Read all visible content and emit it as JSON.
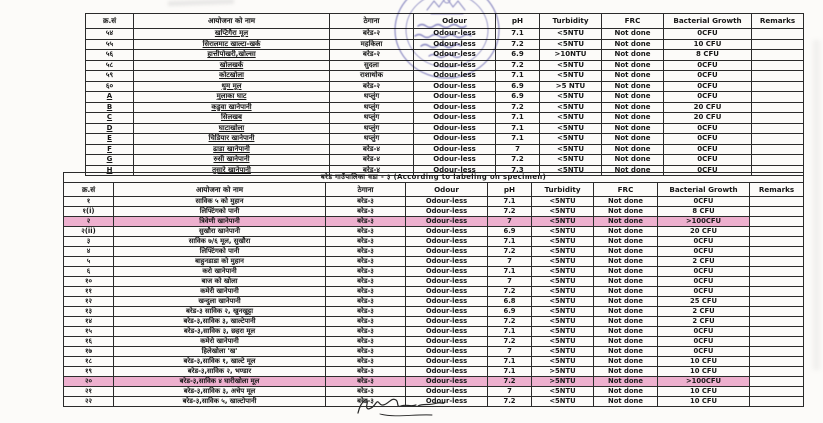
{
  "page": {
    "background": "#fcfbf9"
  },
  "colors": {
    "highlight": "#e9aecb",
    "stamp_ink": "#4a48a6",
    "table_border": "#2e2e2e"
  },
  "table1": {
    "headers": [
      "क्र.सं",
      "आयोजना को नाम",
      "ठेगाना",
      "Odour",
      "pH",
      "Turbidity",
      "FRC",
      "Bacterial Growth",
      "Remarks"
    ],
    "rows": [
      {
        "sn": "५४",
        "name": "खप्टिगैरा मूल",
        "addr": "बरेड-२",
        "odour": "Odour-less",
        "ph": "7.1",
        "turb": "<5NTU",
        "frc": "Not done",
        "bact": "0CFU",
        "rem": ""
      },
      {
        "sn": "५५",
        "name": "सिरालमाट खाल्टा-खर्क",
        "addr": "महकिला",
        "odour": "Odour-less",
        "ph": "7.2",
        "turb": "<5NTU",
        "frc": "Not done",
        "bact": "10 CFU",
        "rem": ""
      },
      {
        "sn": "५६",
        "name": "हात्तीपोखरी,खोल्सा",
        "addr": "बरेड-२",
        "odour": "Odour-less",
        "ph": "6.9",
        "turb": ">10NTU",
        "frc": "Not done",
        "bact": "8 CFU",
        "rem": ""
      },
      {
        "sn": "५८",
        "name": "खोलखर्क",
        "addr": "सुदला",
        "odour": "Odour-less",
        "ph": "7.2",
        "turb": "<5NTU",
        "frc": "Not done",
        "bact": "0CFU",
        "rem": ""
      },
      {
        "sn": "५९",
        "name": "कोटखोला",
        "addr": "राशाथोक",
        "odour": "Odour-less",
        "ph": "7.1",
        "turb": "<5NTU",
        "frc": "Not done",
        "bact": "0CFU",
        "rem": ""
      },
      {
        "sn": "६०",
        "name": "थुम मूल",
        "addr": "बरेड-२",
        "odour": "Odour-less",
        "ph": "6.9",
        "turb": ">5 NTU",
        "frc": "Not done",
        "bact": "0CFU",
        "rem": ""
      },
      {
        "sn": "A",
        "name": "मुलाका घाट",
        "addr": "थप्लुंग",
        "odour": "Odour-less",
        "ph": "6.9",
        "turb": "<5NTU",
        "frc": "Not done",
        "bact": "0CFU",
        "rem": ""
      },
      {
        "sn": "B",
        "name": "कडुवा खानेपानी",
        "addr": "थप्लुंग",
        "odour": "Odour-less",
        "ph": "7.2",
        "turb": "<5NTU",
        "frc": "Not done",
        "bact": "20 CFU",
        "rem": ""
      },
      {
        "sn": "C",
        "name": "सिलखब",
        "addr": "थप्लुंग",
        "odour": "Odour-less",
        "ph": "7.1",
        "turb": "<5NTU",
        "frc": "Not done",
        "bact": "20 CFU",
        "rem": ""
      },
      {
        "sn": "D",
        "name": "घाटाखोला",
        "addr": "थप्लुंग",
        "odour": "Odour-less",
        "ph": "7.1",
        "turb": "<5NTU",
        "frc": "Not done",
        "bact": "0CFU",
        "rem": ""
      },
      {
        "sn": "E",
        "name": "चिडियार खानेपानी",
        "addr": "थप्लुंग",
        "odour": "Odour-less",
        "ph": "7.1",
        "turb": "<5NTU",
        "frc": "Not done",
        "bact": "0CFU",
        "rem": ""
      },
      {
        "sn": "F",
        "name": "ढाडा खानेपानी",
        "addr": "बरेड-४",
        "odour": "Odour-less",
        "ph": "7",
        "turb": "<5NTU",
        "frc": "Not done",
        "bact": "0CFU",
        "rem": ""
      },
      {
        "sn": "G",
        "name": "रुसी खानेपानी",
        "addr": "बरेड-४",
        "odour": "Odour-less",
        "ph": "7.2",
        "turb": "<5NTU",
        "frc": "Not done",
        "bact": "0CFU",
        "rem": ""
      },
      {
        "sn": "H",
        "name": "तुसारे खानेपानी",
        "addr": "बरेड-४",
        "odour": "Odour-less",
        "ph": "7.3",
        "turb": "<5NTU",
        "frc": "Not done",
        "bact": "0CFU",
        "rem": ""
      }
    ]
  },
  "table2": {
    "title": "बरेड गाउँपालिका वडा - ३ (According to labeling on specimen)",
    "headers": [
      "क्र.सं",
      "आयोजना को नाम",
      "ठेगाना",
      "Odour",
      "pH",
      "Turbidity",
      "FRC",
      "Bacterial Growth",
      "Remarks"
    ],
    "rows": [
      {
        "sn": "१",
        "name": "साविक ५ को मुहान",
        "addr": "बरेड-३",
        "odour": "Odour-less",
        "ph": "7.1",
        "turb": "<5NTU",
        "frc": "Not done",
        "bact": "0CFU",
        "rem": ""
      },
      {
        "sn": "१(i)",
        "name": "लिफ्टिंगको पानी",
        "addr": "बरेड-३",
        "odour": "Odour-less",
        "ph": "7.2",
        "turb": "<5NTU",
        "frc": "Not done",
        "bact": "8 CFU",
        "rem": ""
      },
      {
        "sn": "२",
        "name": "त्रिवेणी खानेपानी",
        "addr": "बरेड-३",
        "odour": "Odour-less",
        "ph": "7",
        "turb": "<5NTU",
        "frc": "Not done",
        "bact": ">100CFU",
        "rem": "",
        "hl": true
      },
      {
        "sn": "२(ii)",
        "name": "सुखौरा खानेपानी",
        "addr": "बरेड-३",
        "odour": "Odour-less",
        "ph": "6.9",
        "turb": "<5NTU",
        "frc": "Not done",
        "bact": "20 CFU",
        "rem": ""
      },
      {
        "sn": "३",
        "name": "साविक ७/६ मूल, सुखौरा",
        "addr": "बरेड-३",
        "odour": "Odour-less",
        "ph": "7.1",
        "turb": "<5NTU",
        "frc": "Not done",
        "bact": "0CFU",
        "rem": ""
      },
      {
        "sn": "४",
        "name": "लिफ्टिंगको पानी",
        "addr": "बरेड-३",
        "odour": "Odour-less",
        "ph": "7.2",
        "turb": "<5NTU",
        "frc": "Not done",
        "bact": "0CFU",
        "rem": ""
      },
      {
        "sn": "५",
        "name": "बाहुनडाडा को मुहान",
        "addr": "बरेड-३",
        "odour": "Odour-less",
        "ph": "7",
        "turb": "<5NTU",
        "frc": "Not done",
        "bact": "2 CFU",
        "rem": ""
      },
      {
        "sn": "६",
        "name": "करो खानेपानी",
        "addr": "बरेड-३",
        "odour": "Odour-less",
        "ph": "7.1",
        "turb": "<5NTU",
        "frc": "Not done",
        "bact": "0CFU",
        "rem": ""
      },
      {
        "sn": "१०",
        "name": "बाज को खोला",
        "addr": "बरेड-३",
        "odour": "Odour-less",
        "ph": "7",
        "turb": "<5NTU",
        "frc": "Not done",
        "bact": "0CFU",
        "rem": ""
      },
      {
        "sn": "११",
        "name": "कमेरी खानेपानी",
        "addr": "बरेड-३",
        "odour": "Odour-less",
        "ph": "7.2",
        "turb": "<5NTU",
        "frc": "Not done",
        "bact": "0CFU",
        "rem": ""
      },
      {
        "sn": "१२",
        "name": "खन्दुला खानेपानी",
        "addr": "बरेड-३",
        "odour": "Odour-less",
        "ph": "6.8",
        "turb": "<5NTU",
        "frc": "Not done",
        "bact": "25 CFU",
        "rem": ""
      },
      {
        "sn": "१३",
        "name": "बरेड-३ साविक २, खुनखुट्टा",
        "addr": "बरेड-३",
        "odour": "Odour-less",
        "ph": "6.9",
        "turb": "<5NTU",
        "frc": "Not done",
        "bact": "2 CFU",
        "rem": ""
      },
      {
        "sn": "१४",
        "name": "बरेड-३,साविक ३, खाल्टेपानी",
        "addr": "बरेड-३",
        "odour": "Odour-less",
        "ph": "7.2",
        "turb": "<5NTU",
        "frc": "Not done",
        "bact": "2 CFU",
        "rem": ""
      },
      {
        "sn": "१५",
        "name": "बरेड-३,साविक ३, छहरा मूल",
        "addr": "बरेड-३",
        "odour": "Odour-less",
        "ph": "7.1",
        "turb": "<5NTU",
        "frc": "Not done",
        "bact": "0CFU",
        "rem": ""
      },
      {
        "sn": "१६",
        "name": "कमेरो खानेपानी",
        "addr": "बरेड-३",
        "odour": "Odour-less",
        "ph": "7.2",
        "turb": "<5NTU",
        "frc": "Not done",
        "bact": "0CFU",
        "rem": ""
      },
      {
        "sn": "१७",
        "name": "हिलेखोला 'ख'",
        "addr": "बरेड-३",
        "odour": "Odour-less",
        "ph": "7",
        "turb": "<5NTU",
        "frc": "Not done",
        "bact": "0CFU",
        "rem": ""
      },
      {
        "sn": "१८",
        "name": "बरेड-३,साविक १, खाल्टे मूल",
        "addr": "बरेड-३",
        "odour": "Odour-less",
        "ph": "7.1",
        "turb": "<5NTU",
        "frc": "Not done",
        "bact": "10 CFU",
        "rem": ""
      },
      {
        "sn": "१९",
        "name": "बरेड-३,साविक २, भण्डार",
        "addr": "बरेड-३",
        "odour": "Odour-less",
        "ph": "7.1",
        "turb": ">5NTU",
        "frc": "Not done",
        "bact": "10 CFU",
        "rem": ""
      },
      {
        "sn": "२०",
        "name": "बरेड-३,साविक ४ घारीखोला मूल",
        "addr": "बरेड-३",
        "odour": "Odour-less",
        "ph": "7.2",
        "turb": ">5NTU",
        "frc": "Not done",
        "bact": ">100CFU",
        "rem": "",
        "hl": true,
        "tall": true
      },
      {
        "sn": "२१",
        "name": "बरेड-३,साविक ३, अचेप मूल",
        "addr": "बरेड-३",
        "odour": "Odour-less",
        "ph": "7",
        "turb": "<5NTU",
        "frc": "Not done",
        "bact": "10 CFU",
        "rem": ""
      },
      {
        "sn": "२२",
        "name": "बरेड-३,साविक ५, खाल्टोपानी",
        "addr": "बरेड-३",
        "odour": "Odour-less",
        "ph": "7.2",
        "turb": "<5NTU",
        "frc": "Not done",
        "bact": "10 CFU",
        "rem": ""
      }
    ]
  }
}
